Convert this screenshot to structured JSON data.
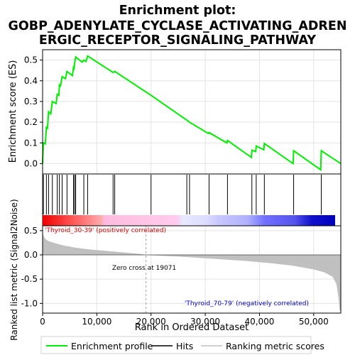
{
  "title_lines": [
    "Enrichment plot:",
    "GOBP_ADENYLATE_CYCLASE_ACTIVATING_ADREN",
    "ERGIC_RECEPTOR_SIGNALING_PATHWAY"
  ],
  "colors": {
    "es_line": "#00ee00",
    "hits": "#000000",
    "metric_fill": "#c0c0c0",
    "positive_label": "#dd0000",
    "negative_label": "#0000cc",
    "zero_cross": "#a0a0a0"
  },
  "chart_data": [
    {
      "type": "line",
      "name": "enrichment-profile",
      "ylabel": "Enrichment score (ES)",
      "xlim": [
        0,
        55000
      ],
      "ylim": [
        -0.05,
        0.55
      ],
      "yticks": [
        "0.0",
        "0.1",
        "0.2",
        "0.3",
        "0.4",
        "0.5"
      ],
      "ytick_values": [
        0.0,
        0.1,
        0.2,
        0.3,
        0.4,
        0.5
      ],
      "grid": true,
      "points": [
        [
          0,
          0.0
        ],
        [
          150,
          0.1
        ],
        [
          500,
          0.095
        ],
        [
          700,
          0.175
        ],
        [
          900,
          0.17
        ],
        [
          1100,
          0.25
        ],
        [
          1500,
          0.24
        ],
        [
          1800,
          0.3
        ],
        [
          2500,
          0.29
        ],
        [
          2700,
          0.335
        ],
        [
          3000,
          0.33
        ],
        [
          3100,
          0.38
        ],
        [
          3300,
          0.375
        ],
        [
          3600,
          0.42
        ],
        [
          4200,
          0.41
        ],
        [
          4500,
          0.445
        ],
        [
          5500,
          0.425
        ],
        [
          5700,
          0.465
        ],
        [
          5800,
          0.46
        ],
        [
          5900,
          0.485
        ],
        [
          6100,
          0.515
        ],
        [
          7300,
          0.49
        ],
        [
          7600,
          0.5
        ],
        [
          8000,
          0.493
        ],
        [
          8300,
          0.52
        ],
        [
          13000,
          0.44
        ],
        [
          13300,
          0.445
        ],
        [
          20000,
          0.33
        ],
        [
          26600,
          0.21
        ],
        [
          27100,
          0.2
        ],
        [
          30600,
          0.145
        ],
        [
          30700,
          0.15
        ],
        [
          34000,
          0.1
        ],
        [
          34100,
          0.112
        ],
        [
          38500,
          0.03
        ],
        [
          38600,
          0.065
        ],
        [
          39300,
          0.058
        ],
        [
          39400,
          0.085
        ],
        [
          40800,
          0.067
        ],
        [
          40900,
          0.097
        ],
        [
          46200,
          0.0
        ],
        [
          46300,
          0.062
        ],
        [
          51300,
          -0.03
        ],
        [
          51400,
          0.062
        ],
        [
          55000,
          0.0
        ]
      ]
    },
    {
      "type": "scatter",
      "name": "hits",
      "hit_positions": [
        150,
        700,
        1100,
        1800,
        2700,
        3100,
        3600,
        4500,
        5700,
        5900,
        6100,
        7600,
        8300,
        13000,
        13300,
        20000,
        26600,
        27100,
        30700,
        34100,
        38600,
        39400,
        40900,
        46300,
        51400
      ]
    },
    {
      "type": "area",
      "name": "ranked-list-metric",
      "ylabel": "Ranked list metric (Signal2Noise)",
      "xlabel": "Rank in Ordered Dataset",
      "xlim": [
        0,
        55000
      ],
      "ylim": [
        -1.2,
        0.6
      ],
      "xticks": [
        "0",
        "10,000",
        "20,000",
        "30,000",
        "40,000",
        "50,000"
      ],
      "xtick_values": [
        0,
        10000,
        20000,
        30000,
        40000,
        50000
      ],
      "yticks": [
        "-1.0",
        "-0.5",
        "0.0",
        "0.5"
      ],
      "ytick_values": [
        -1.0,
        -0.5,
        0.0,
        0.5
      ],
      "grid": true,
      "points": [
        [
          0,
          0.55
        ],
        [
          100,
          0.42
        ],
        [
          300,
          0.36
        ],
        [
          600,
          0.32
        ],
        [
          1000,
          0.29
        ],
        [
          2000,
          0.25
        ],
        [
          4000,
          0.19
        ],
        [
          6000,
          0.15
        ],
        [
          8000,
          0.12
        ],
        [
          10000,
          0.1
        ],
        [
          12000,
          0.08
        ],
        [
          14000,
          0.06
        ],
        [
          16000,
          0.04
        ],
        [
          18000,
          0.02
        ],
        [
          19071,
          0.0
        ],
        [
          22000,
          -0.02
        ],
        [
          26000,
          -0.04
        ],
        [
          30000,
          -0.07
        ],
        [
          34000,
          -0.1
        ],
        [
          38000,
          -0.13
        ],
        [
          42000,
          -0.17
        ],
        [
          46000,
          -0.22
        ],
        [
          48000,
          -0.26
        ],
        [
          50000,
          -0.3
        ],
        [
          52000,
          -0.36
        ],
        [
          53500,
          -0.45
        ],
        [
          54200,
          -0.6
        ],
        [
          54600,
          -0.9
        ],
        [
          54800,
          -1.15
        ],
        [
          55000,
          -1.15
        ]
      ],
      "zero_cross": 19071,
      "zero_cross_label": "Zero cross at 19071",
      "positive_label": "'Thyroid_30-39' (positively correlated)",
      "negative_label": "'Thyroid_70-79' (negatively correlated)"
    }
  ],
  "legend": {
    "items": [
      {
        "label": "Enrichment profile",
        "color": "#00ee00"
      },
      {
        "label": "Hits",
        "color": "#000000"
      },
      {
        "label": "Ranking metric scores",
        "color": "#c0c0c0"
      }
    ]
  }
}
